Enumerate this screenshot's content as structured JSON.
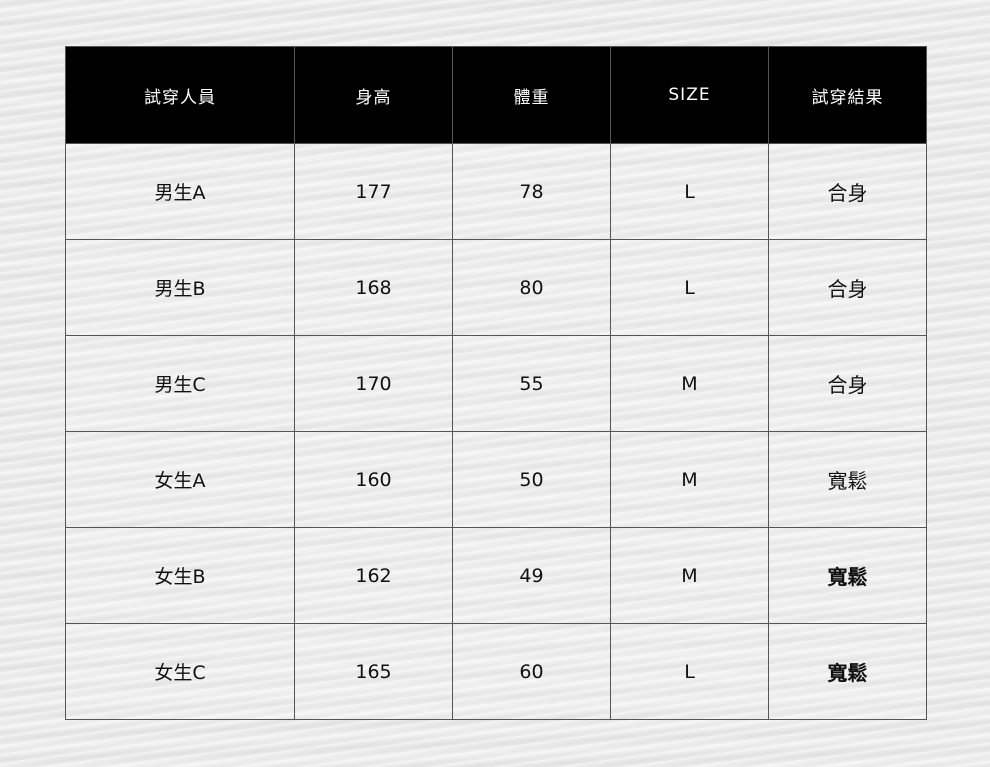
{
  "table": {
    "headers": [
      "試穿人員",
      "身高",
      "體重",
      "SIZE",
      "試穿結果"
    ],
    "rows": [
      {
        "name": "男生A",
        "height": "177",
        "weight": "78",
        "size": "L",
        "result": "合身"
      },
      {
        "name": "男生B",
        "height": "168",
        "weight": "80",
        "size": "L",
        "result": "合身"
      },
      {
        "name": "男生C",
        "height": "170",
        "weight": "55",
        "size": "M",
        "result": "合身"
      },
      {
        "name": "女生A",
        "height": "160",
        "weight": "50",
        "size": "M",
        "result": "寬鬆"
      },
      {
        "name": "女生B",
        "height": "162",
        "weight": "49",
        "size": "M",
        "result": "寬鬆"
      },
      {
        "name": "女生C",
        "height": "165",
        "weight": "60",
        "size": "L",
        "result": "寬鬆"
      }
    ]
  }
}
